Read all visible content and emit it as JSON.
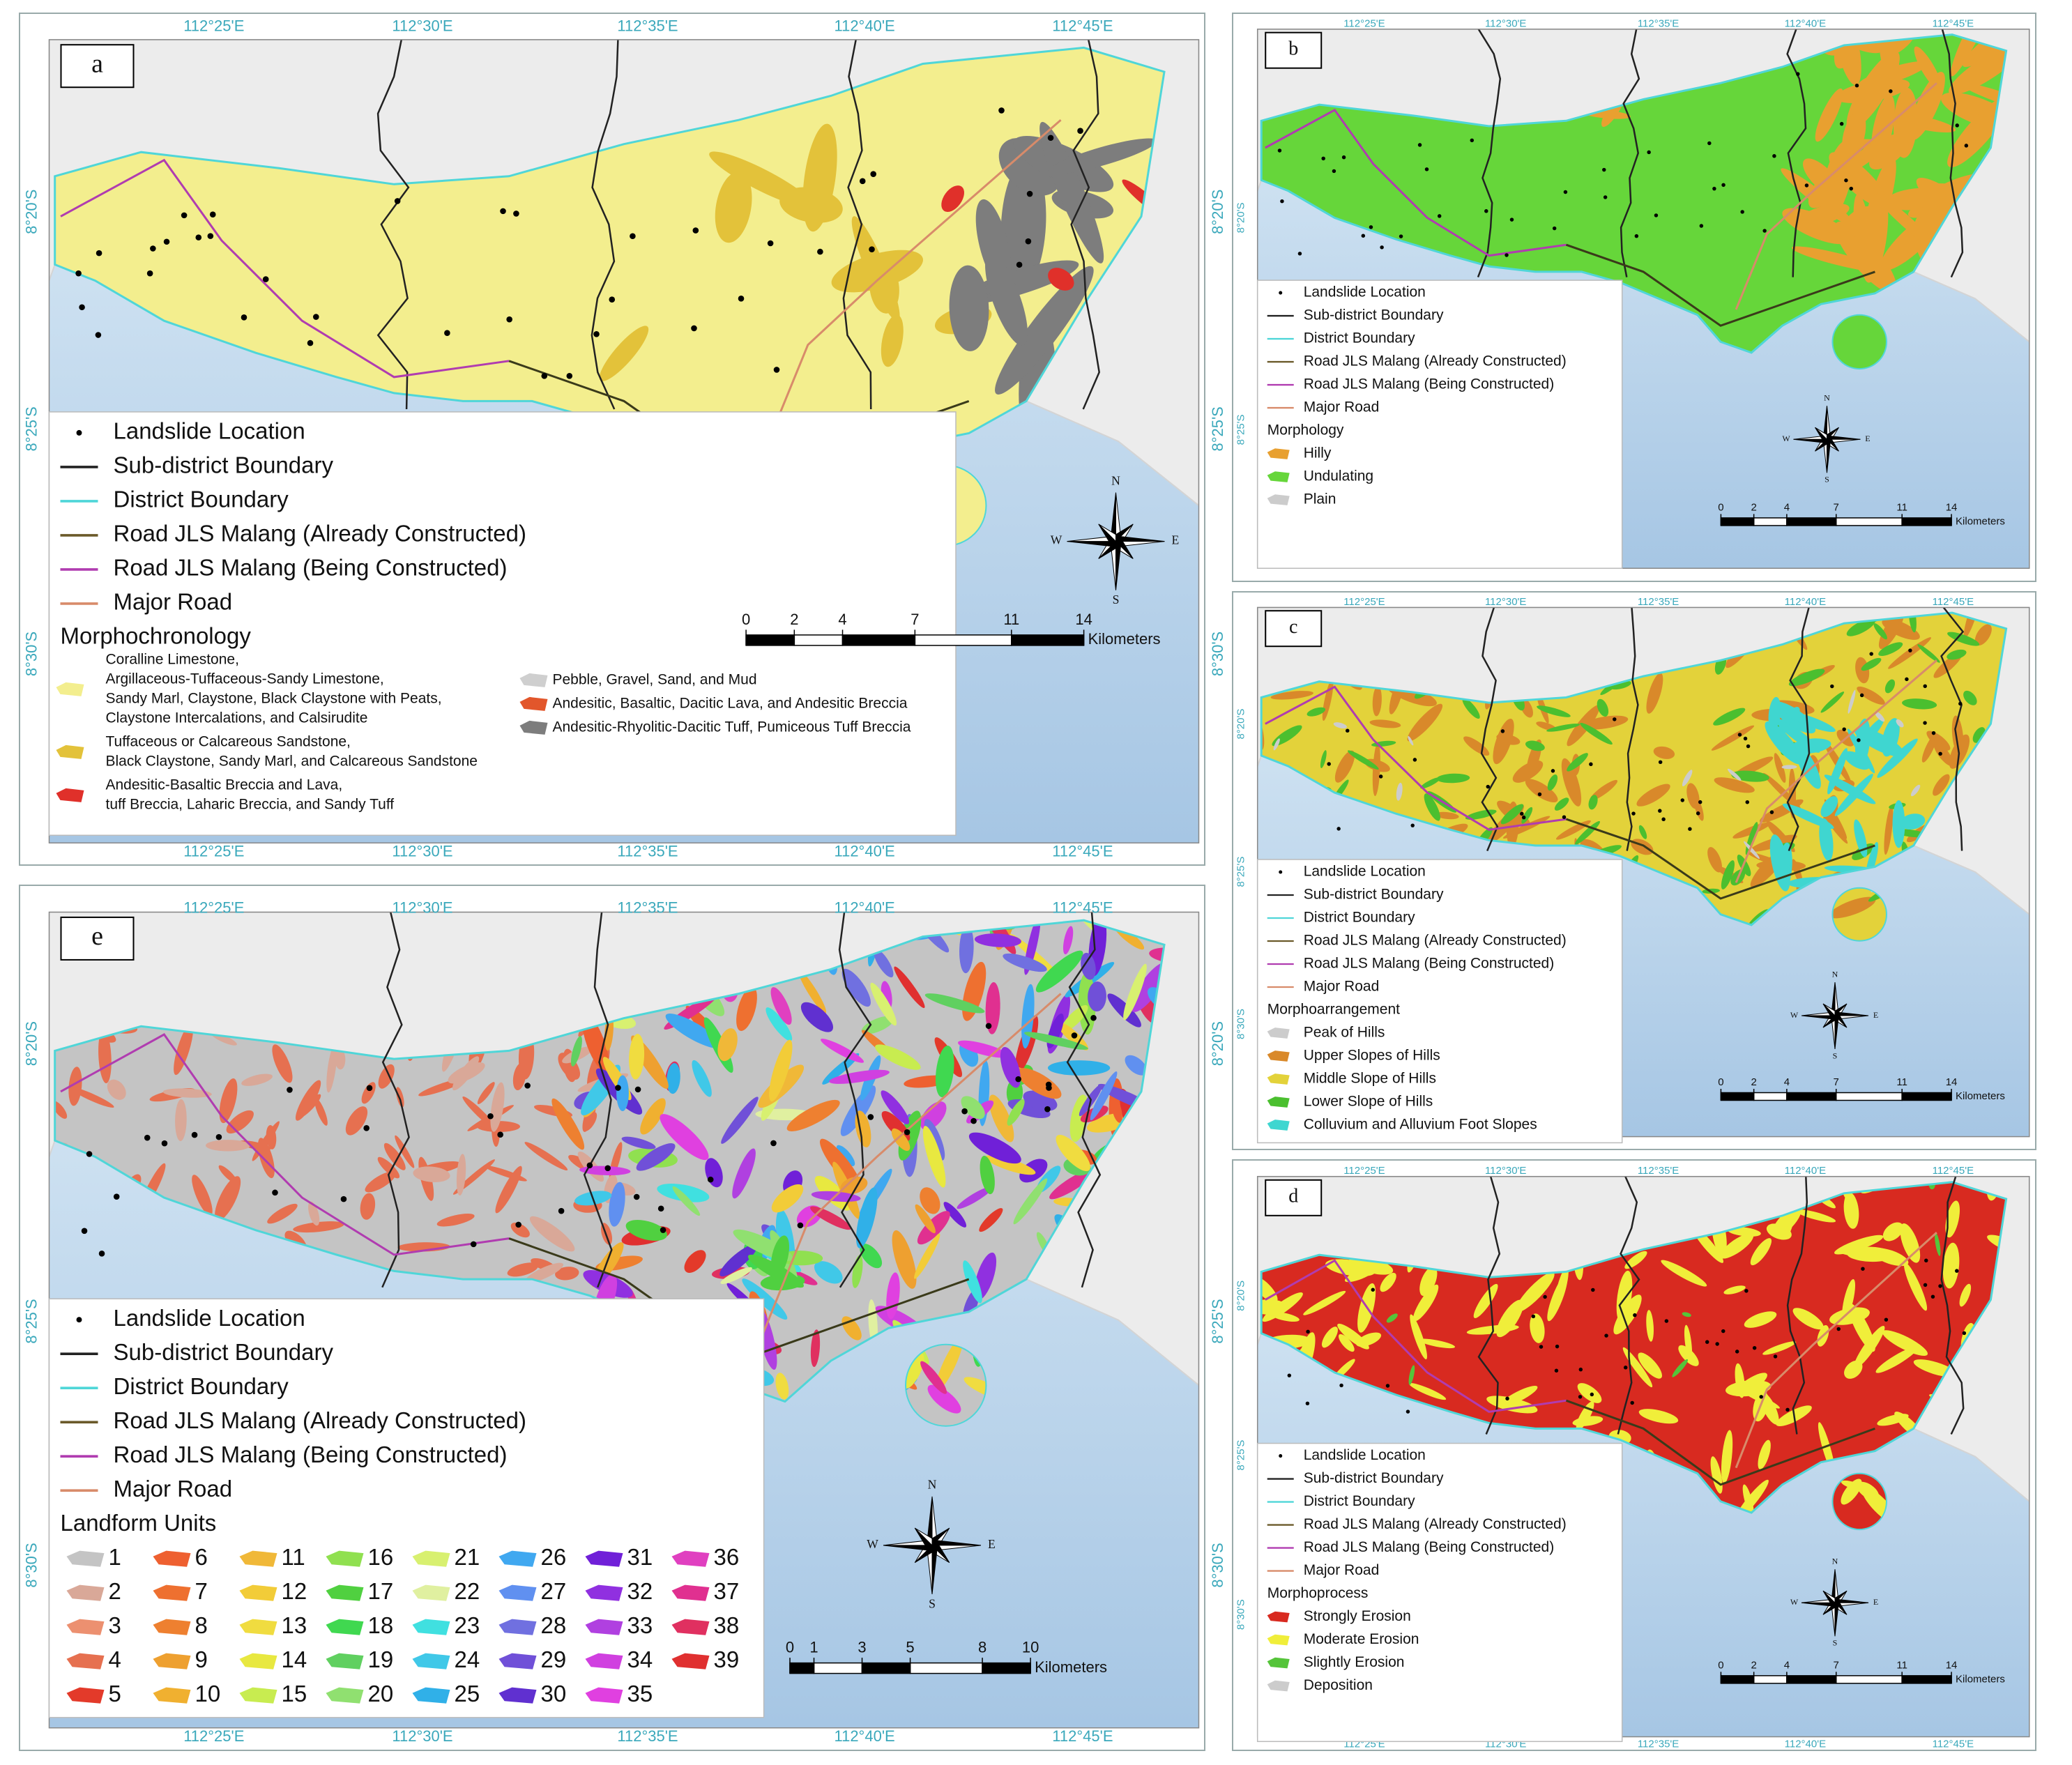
{
  "lon_labels": [
    "112°25'E",
    "112°30'E",
    "112°35'E",
    "112°40'E",
    "112°45'E"
  ],
  "compass": [
    "N",
    "E",
    "S",
    "W"
  ],
  "scale_unit": "Kilometers",
  "common_legend": [
    {
      "label": "Landslide Location",
      "symbol": "dot",
      "color": "#000000"
    },
    {
      "label": "Sub-district Boundary",
      "symbol": "line",
      "color": "#222222"
    },
    {
      "label": "District Boundary",
      "symbol": "line",
      "color": "#4fd6d8"
    },
    {
      "label": "Road JLS Malang (Already Constructed)",
      "symbol": "line",
      "color": "#6b5a2a"
    },
    {
      "label": "Road JLS Malang (Being Constructed)",
      "symbol": "line",
      "color": "#b03cb0"
    },
    {
      "label": "Major Road",
      "symbol": "line",
      "color": "#d88b6a"
    }
  ],
  "panels": [
    {
      "letter": "a",
      "legend_title": "Morphochronology",
      "graticule_edges": [
        "top",
        "bottom",
        "right"
      ],
      "lat_labels": [
        "8°20'S",
        "8°25'S",
        "8°30'S"
      ],
      "scale": [
        0,
        2,
        4,
        7,
        11,
        14
      ],
      "classes": [
        {
          "lines": [
            "Coralline Limestone,",
            "Argillaceous-Tuffaceous-Sandy Limestone,",
            "Sandy Marl, Claystone, Black Claystone with Peats,",
            "Claystone Intercalations, and Calsirudite"
          ],
          "color": "#f3ee8e"
        },
        {
          "lines": [
            "Tuffaceous or Calcareous Sandstone,",
            "Black Claystone, Sandy Marl, and Calcareous Sandstone"
          ],
          "color": "#e3c23a"
        },
        {
          "lines": [
            "Andesitic-Basaltic Breccia and Lava,",
            "tuff Breccia, Laharic Breccia, and Sandy Tuff"
          ],
          "color": "#e0302a"
        },
        {
          "lines": [
            "Pebble, Gravel, Sand, and Mud"
          ],
          "color": "#cfcfcf"
        },
        {
          "lines": [
            "Andesitic, Basaltic, Dacitic Lava, and Andesitic Breccia"
          ],
          "color": "#e2562b"
        },
        {
          "lines": [
            "Andesitic-Rhyolitic-Dacitic Tuff, Pumiceous Tuff Breccia"
          ],
          "color": "#7d7d7d"
        }
      ]
    },
    {
      "letter": "b",
      "legend_title": "Morphology",
      "graticule_edges": [
        "top"
      ],
      "lat_labels": [
        "8°20'S",
        "8°25'S"
      ],
      "scale": [
        0,
        2,
        4,
        7,
        11,
        14
      ],
      "classes": [
        {
          "lines": [
            "Hilly"
          ],
          "color": "#e8a030"
        },
        {
          "lines": [
            "Undulating"
          ],
          "color": "#66d63a"
        },
        {
          "lines": [
            "Plain"
          ],
          "color": "#cccccc"
        }
      ]
    },
    {
      "letter": "c",
      "legend_title": "Morphoarrangement",
      "graticule_edges": [
        "top"
      ],
      "lat_labels": [
        "8°20'S",
        "8°25'S",
        "8°30'S"
      ],
      "scale": [
        0,
        2,
        4,
        7,
        11,
        14
      ],
      "classes": [
        {
          "lines": [
            "Peak of Hills"
          ],
          "color": "#cccccc"
        },
        {
          "lines": [
            "Upper Slopes of Hills"
          ],
          "color": "#d9892a"
        },
        {
          "lines": [
            "Middle Slope of Hills"
          ],
          "color": "#e3d23a"
        },
        {
          "lines": [
            "Lower Slope of Hills"
          ],
          "color": "#4bbf2f"
        },
        {
          "lines": [
            "Colluvium and Alluvium Foot Slopes"
          ],
          "color": "#3fd6d0"
        }
      ]
    },
    {
      "letter": "d",
      "legend_title": "Morphoprocess",
      "graticule_edges": [
        "top",
        "bottom"
      ],
      "lat_labels": [
        "8°20'S",
        "8°25'S",
        "8°30'S"
      ],
      "scale": [
        0,
        2,
        4,
        7,
        11,
        14
      ],
      "classes": [
        {
          "lines": [
            "Strongly Erosion"
          ],
          "color": "#d82a20"
        },
        {
          "lines": [
            "Moderate Erosion"
          ],
          "color": "#f0ee3a"
        },
        {
          "lines": [
            "Slightly Erosion"
          ],
          "color": "#55c43a"
        },
        {
          "lines": [
            "Deposition"
          ],
          "color": "#cccccc"
        }
      ]
    },
    {
      "letter": "e",
      "legend_title": "Landform Units",
      "graticule_edges": [
        "top",
        "bottom",
        "right"
      ],
      "lat_labels": [
        "8°20'S",
        "8°25'S",
        "8°30'S"
      ],
      "scale": [
        0,
        1,
        3,
        5,
        8,
        10
      ],
      "classes": [
        {
          "label": 1,
          "color": "#c4c4c4"
        },
        {
          "label": 2,
          "color": "#d9a898"
        },
        {
          "label": 3,
          "color": "#ec9070"
        },
        {
          "label": 4,
          "color": "#e67050"
        },
        {
          "label": 5,
          "color": "#e33a2a"
        },
        {
          "label": 6,
          "color": "#ee6030"
        },
        {
          "label": 7,
          "color": "#ee7030"
        },
        {
          "label": 8,
          "color": "#ee8030"
        },
        {
          "label": 9,
          "color": "#eea030"
        },
        {
          "label": 10,
          "color": "#f0b030"
        },
        {
          "label": 11,
          "color": "#f0b838"
        },
        {
          "label": 12,
          "color": "#f2cc38"
        },
        {
          "label": 13,
          "color": "#f0dc40"
        },
        {
          "label": 14,
          "color": "#e8e840"
        },
        {
          "label": 15,
          "color": "#c8ec50"
        },
        {
          "label": 16,
          "color": "#90e050"
        },
        {
          "label": 17,
          "color": "#50d040"
        },
        {
          "label": 18,
          "color": "#40d850"
        },
        {
          "label": 19,
          "color": "#60d060"
        },
        {
          "label": 20,
          "color": "#90e070"
        },
        {
          "label": 21,
          "color": "#d8f070"
        },
        {
          "label": 22,
          "color": "#e0f0a0"
        },
        {
          "label": 23,
          "color": "#40e0e0"
        },
        {
          "label": 24,
          "color": "#40c8e8"
        },
        {
          "label": 25,
          "color": "#30b0e8"
        },
        {
          "label": 26,
          "color": "#40a8f0"
        },
        {
          "label": 27,
          "color": "#6090f0"
        },
        {
          "label": 28,
          "color": "#7070e0"
        },
        {
          "label": 29,
          "color": "#7050d8"
        },
        {
          "label": 30,
          "color": "#6030d0"
        },
        {
          "label": 31,
          "color": "#7020d8"
        },
        {
          "label": 32,
          "color": "#9030e0"
        },
        {
          "label": 33,
          "color": "#b040e0"
        },
        {
          "label": 34,
          "color": "#d040e0"
        },
        {
          "label": 35,
          "color": "#e040e0"
        },
        {
          "label": 36,
          "color": "#e040c0"
        },
        {
          "label": 37,
          "color": "#e03090"
        },
        {
          "label": 38,
          "color": "#e03060"
        },
        {
          "label": 39,
          "color": "#e03030"
        }
      ]
    }
  ]
}
